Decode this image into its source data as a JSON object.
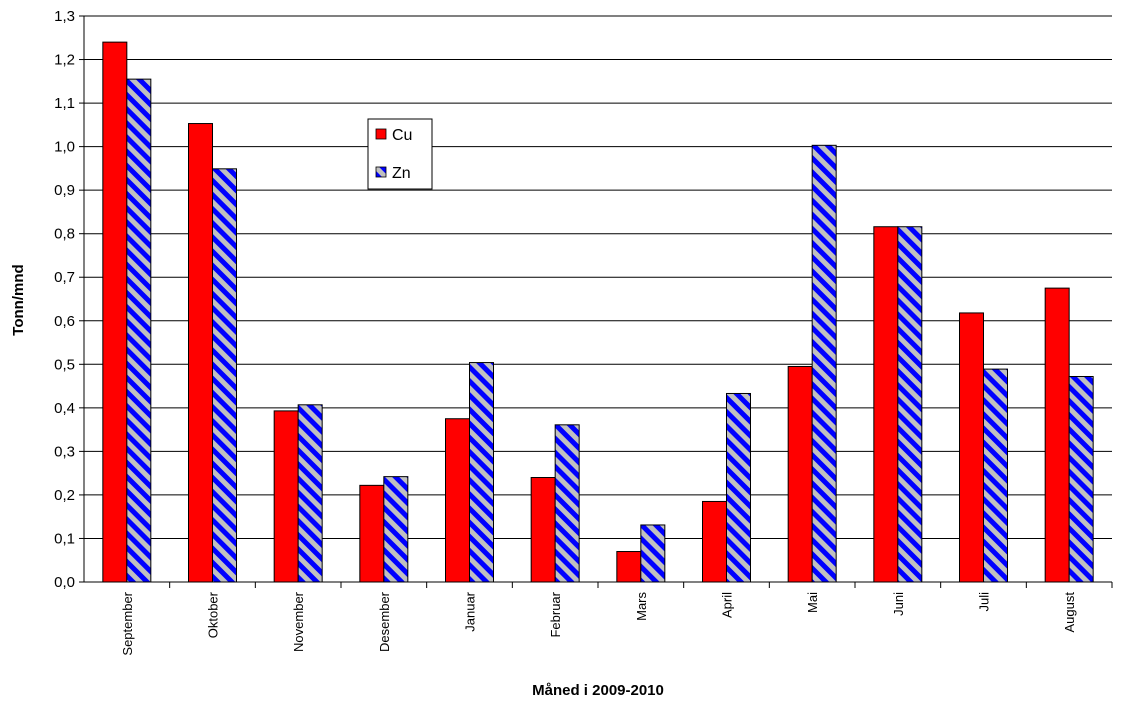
{
  "chart_data": {
    "type": "bar",
    "title": "",
    "xlabel": "Måned i 2009-2010",
    "ylabel": "Tonn/mnd",
    "ylim": [
      0,
      1.3
    ],
    "yticks": [
      "0,0",
      "0,1",
      "0,2",
      "0,3",
      "0,4",
      "0,5",
      "0,6",
      "0,7",
      "0,8",
      "0,9",
      "1,0",
      "1,1",
      "1,2",
      "1,3"
    ],
    "ytick_values": [
      0,
      0.1,
      0.2,
      0.3,
      0.4,
      0.5,
      0.6,
      0.7,
      0.8,
      0.9,
      1.0,
      1.1,
      1.2,
      1.3
    ],
    "grid": true,
    "legend_position": "upper-left-center",
    "categories": [
      "September",
      "Oktober",
      "November",
      "Desember",
      "Januar",
      "Februar",
      "Mars",
      "April",
      "Mai",
      "Juni",
      "Juli",
      "August"
    ],
    "series": [
      {
        "name": "Cu",
        "color": "#ff0000",
        "pattern": "solid",
        "values": [
          1.24,
          1.053,
          0.393,
          0.222,
          0.375,
          0.24,
          0.07,
          0.185,
          0.495,
          0.816,
          0.618,
          0.675
        ]
      },
      {
        "name": "Zn",
        "color": "#c0c0c0",
        "pattern_color": "#0000ff",
        "pattern": "diagonal-stripes",
        "values": [
          1.155,
          0.949,
          0.407,
          0.242,
          0.504,
          0.361,
          0.131,
          0.433,
          1.003,
          0.816,
          0.489,
          0.472
        ]
      }
    ]
  }
}
